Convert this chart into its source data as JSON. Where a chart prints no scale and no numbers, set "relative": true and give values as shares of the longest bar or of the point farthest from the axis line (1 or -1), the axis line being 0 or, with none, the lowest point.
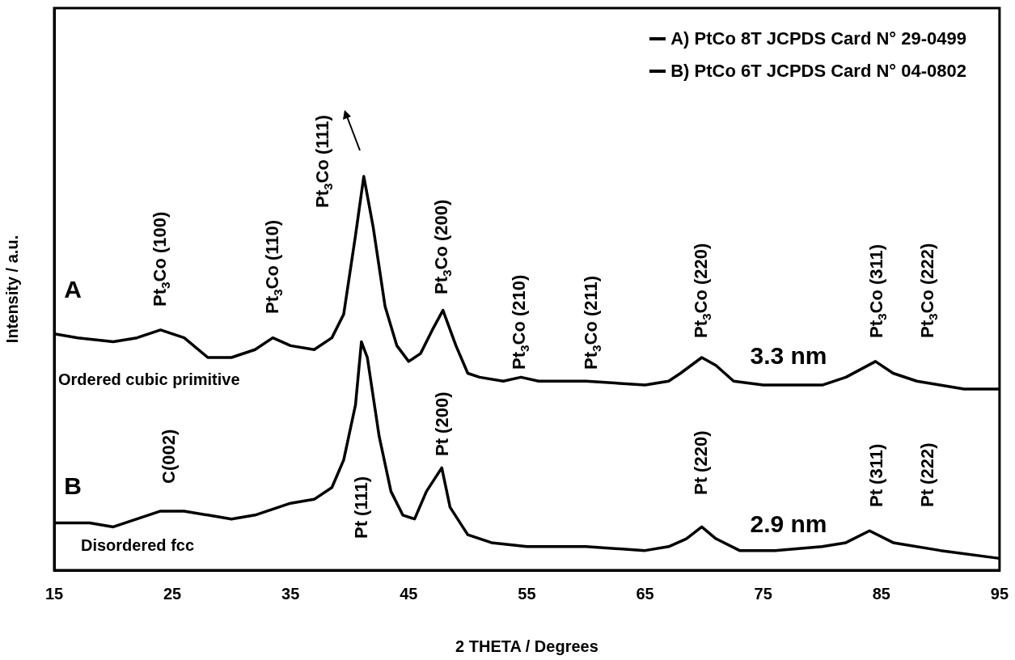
{
  "chart_data": {
    "type": "line",
    "xlabel": "2 THETA / Degrees",
    "ylabel": "Intensity / a.u.",
    "relative": true,
    "xlim": [
      15,
      95
    ],
    "xticks": [
      15,
      25,
      35,
      45,
      55,
      65,
      75,
      85,
      95
    ],
    "grid": false,
    "legend": "top right",
    "marker": "none",
    "line_style": "solid",
    "x": [
      15,
      17,
      20,
      22,
      24,
      26,
      28,
      30,
      32,
      33.5,
      35,
      37,
      38.5,
      39.5,
      40.5,
      41.2,
      42,
      43,
      44,
      45,
      46,
      47,
      47.9,
      49,
      50,
      51,
      53,
      54.5,
      56,
      60,
      65,
      67,
      68,
      69.8,
      71,
      72.5,
      75,
      80,
      82,
      84.5,
      86,
      88,
      92,
      95
    ],
    "series": [
      {
        "name": "A) PtCo 8T JCPDS Card N° 29-0499",
        "color": "#000000",
        "values": [
          0.6,
          0.59,
          0.58,
          0.59,
          0.61,
          0.59,
          0.54,
          0.54,
          0.56,
          0.59,
          0.57,
          0.56,
          0.59,
          0.65,
          0.85,
          1,
          0.87,
          0.67,
          0.57,
          0.53,
          0.55,
          0.61,
          0.66,
          0.57,
          0.5,
          0.49,
          0.48,
          0.49,
          0.48,
          0.48,
          0.47,
          0.48,
          0.5,
          0.54,
          0.52,
          0.48,
          0.47,
          0.47,
          0.49,
          0.53,
          0.5,
          0.48,
          0.46,
          0.46
        ]
      },
      {
        "name": "B) PtCo 6T JCPDS Card N° 04-0802",
        "color": "#000000",
        "x": [
          15,
          18,
          20,
          22,
          24,
          26,
          28,
          30,
          32,
          35,
          37,
          38.5,
          39.5,
          40.5,
          41,
          41.5,
          42.5,
          43.5,
          44.5,
          45.5,
          46.5,
          47.8,
          48.5,
          50,
          52,
          55,
          60,
          65,
          67,
          68.5,
          69.8,
          71,
          73,
          76,
          80,
          82,
          84,
          86,
          90,
          95
        ],
        "values": [
          0.12,
          0.12,
          0.11,
          0.13,
          0.15,
          0.15,
          0.14,
          0.13,
          0.14,
          0.17,
          0.18,
          0.21,
          0.28,
          0.42,
          0.58,
          0.54,
          0.34,
          0.2,
          0.14,
          0.13,
          0.2,
          0.26,
          0.16,
          0.09,
          0.07,
          0.06,
          0.06,
          0.05,
          0.06,
          0.08,
          0.11,
          0.08,
          0.05,
          0.05,
          0.06,
          0.07,
          0.1,
          0.07,
          0.05,
          0.03
        ]
      }
    ],
    "annotations": [
      "Pt$_{3}$Co (100)",
      "Pt$_{3}$Co (110)",
      "Pt$_{3}$Co (111)",
      "Pt$_{3}$Co (200)",
      "Pt$_{3}$Co (210)",
      "Pt$_{3}$Co (211)",
      "Pt$_{3}$Co (220)",
      "Pt$_{3}$Co (311)",
      "Pt$_{3}$Co (222)",
      "C(002)",
      "Pt (111)",
      "Pt (200)",
      "Pt (220)",
      "Pt (311)",
      "Pt (222)",
      "A",
      "Ordered cubic primitive",
      "3.3 nm",
      "B",
      "Disordered fcc",
      "2.9 nm"
    ]
  }
}
